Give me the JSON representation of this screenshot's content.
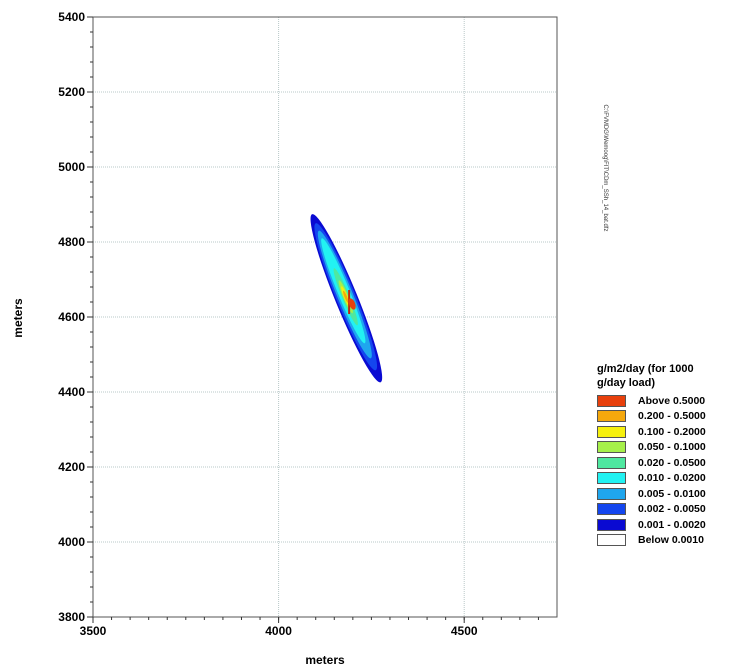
{
  "chart_data": {
    "type": "contour",
    "title": "",
    "xlabel": "meters",
    "ylabel": "meters",
    "xlim": [
      3500,
      4750
    ],
    "ylim": [
      3800,
      5400
    ],
    "xticks": [
      3500,
      4000,
      4500
    ],
    "yticks": [
      3800,
      4000,
      4200,
      4400,
      4600,
      4800,
      5000,
      5200,
      5400
    ],
    "grid": true,
    "side_text": "C:\\FVMDG\\Wemoog\\FIT\\CDm_SSh_14_bat.dfz",
    "legend": {
      "title_lines": [
        "g/m2/day (for 1000",
        "g/day load)"
      ],
      "items": [
        {
          "label": "Above 0.5000",
          "color": "#e8400c"
        },
        {
          "label": "0.200 - 0.5000",
          "color": "#f5a80c"
        },
        {
          "label": "0.100 - 0.2000",
          "color": "#f6f00e"
        },
        {
          "label": "0.050 - 0.1000",
          "color": "#a6f04a"
        },
        {
          "label": "0.020 - 0.0500",
          "color": "#4fe8a0"
        },
        {
          "label": "0.010 - 0.0200",
          "color": "#22f2f2"
        },
        {
          "label": "0.005 - 0.0100",
          "color": "#1fa6ee"
        },
        {
          "label": "0.002 - 0.0050",
          "color": "#1446ee"
        },
        {
          "label": "0.001 - 0.0020",
          "color": "#0a0ad2"
        },
        {
          "label": "Below 0.0010",
          "color": "#ffffff"
        }
      ]
    },
    "plume": {
      "axis_start": [
        4100,
        4850
      ],
      "axis_end": [
        4265,
        4450
      ],
      "source": [
        4190,
        4640
      ],
      "contours": [
        {
          "level": "0.001 - 0.0020",
          "color": "#0a0ad2",
          "t0": -0.06,
          "t1": 1.06,
          "half_width_m": 30
        },
        {
          "level": "0.002 - 0.0050",
          "color": "#1446ee",
          "t0": 0.0,
          "t1": 0.98,
          "half_width_m": 26
        },
        {
          "level": "0.005 - 0.0100",
          "color": "#1fa6ee",
          "t0": 0.05,
          "t1": 0.9,
          "half_width_m": 21
        },
        {
          "level": "0.010 - 0.0200",
          "color": "#22f2f2",
          "t0": 0.1,
          "t1": 0.8,
          "half_width_m": 16
        },
        {
          "level": "0.020 - 0.0500",
          "color": "#4fe8a0",
          "t0": 0.3,
          "t1": 0.68,
          "half_width_m": 10
        },
        {
          "level": "0.050 - 0.1000",
          "color": "#a6f04a",
          "t0": 0.38,
          "t1": 0.6,
          "half_width_m": 7
        },
        {
          "level": "0.100 - 0.2000",
          "color": "#f6f00e",
          "t0": 0.42,
          "t1": 0.56,
          "half_width_m": 5
        },
        {
          "level": "0.200 - 0.5000",
          "color": "#f5a80c",
          "t0": 0.45,
          "t1": 0.53,
          "half_width_m": 3.5
        }
      ]
    }
  }
}
